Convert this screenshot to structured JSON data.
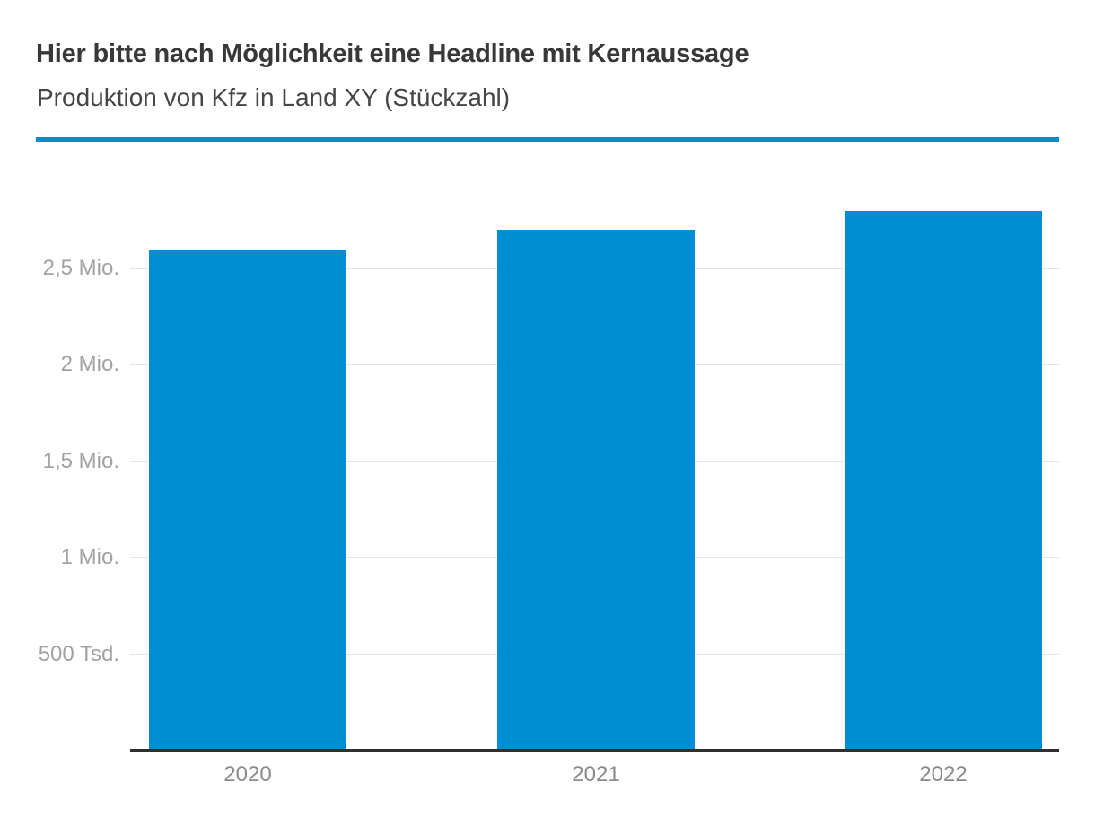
{
  "header": {
    "title": "Hier bitte nach Möglichkeit eine Headline mit Kernaussage",
    "subtitle": "Produktion von Kfz in Land XY (Stückzahl)"
  },
  "colors": {
    "accent_blue": "#008dd4",
    "bar_blue": "#008dd4",
    "axis_dark": "#2e2e2e",
    "grid_gray": "#e6e6e6",
    "ytick_gray": "#a2a2a2",
    "xtick_gray": "#8a8a8a",
    "title_dark": "#383838",
    "subtitle_dark": "#454545"
  },
  "chart_data": {
    "type": "bar",
    "title": "Hier bitte nach Möglichkeit eine Headline mit Kernaussage",
    "subtitle": "Produktion von Kfz in Land XY (Stückzahl)",
    "categories": [
      "2020",
      "2021",
      "2022"
    ],
    "values": [
      2600000,
      2700000,
      2800000
    ],
    "yticks": [
      {
        "value": 500000,
        "label": "500 Tsd."
      },
      {
        "value": 1000000,
        "label": "1 Mio."
      },
      {
        "value": 1500000,
        "label": "1,5 Mio."
      },
      {
        "value": 2000000,
        "label": "2 Mio."
      },
      {
        "value": 2500000,
        "label": "2,5 Mio."
      }
    ],
    "xlabel": "",
    "ylabel": "",
    "ylim": [
      0,
      3000000
    ],
    "grid": true,
    "legend": false,
    "bar_color": "#008dd4"
  }
}
